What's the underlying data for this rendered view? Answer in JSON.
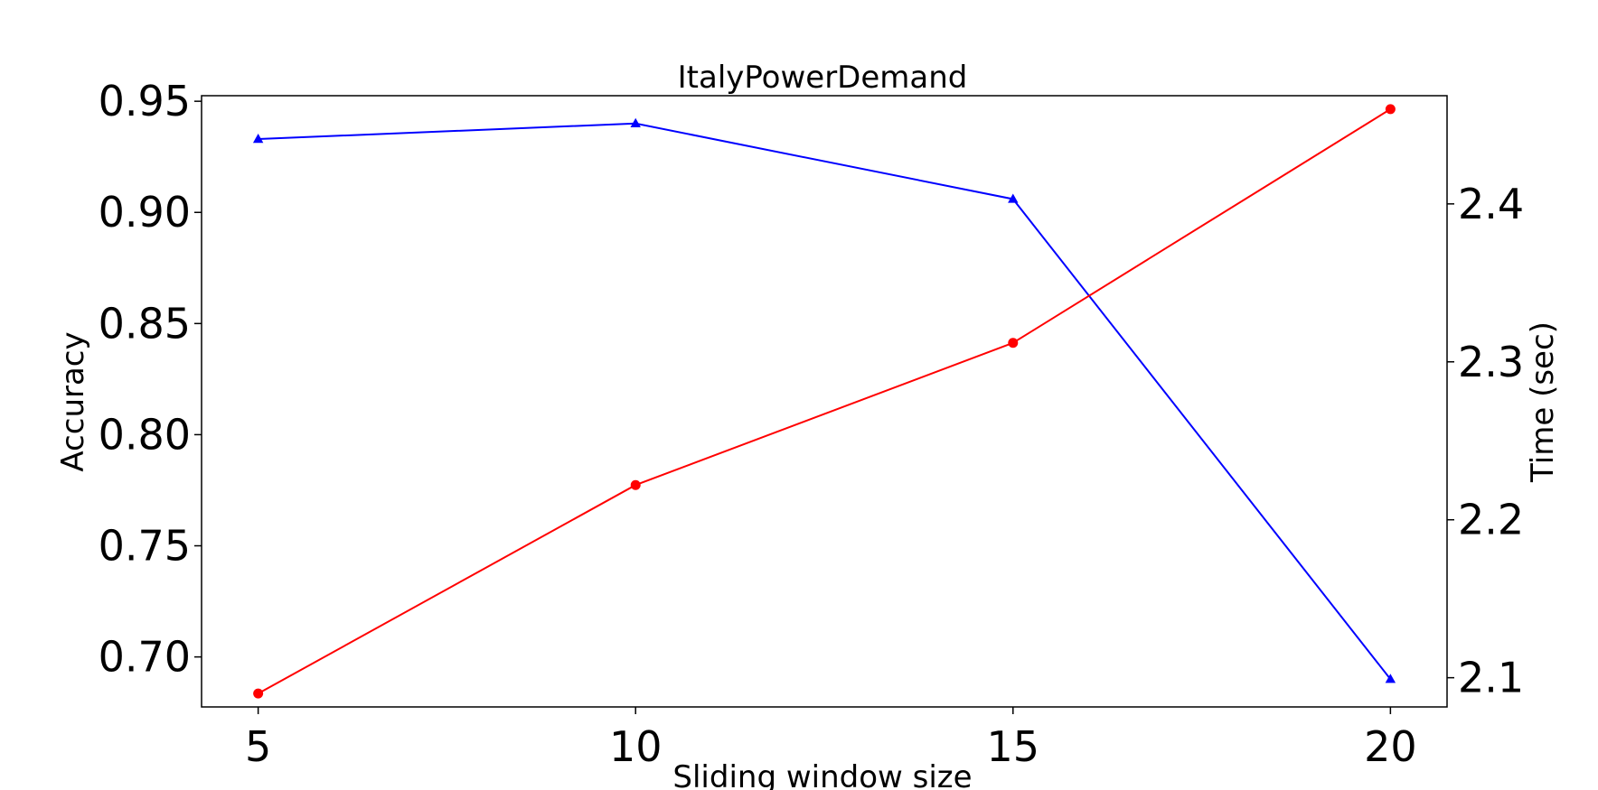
{
  "chart_data": {
    "type": "line",
    "title": "ItalyPowerDemand",
    "xlabel": "Sliding window size",
    "ylabel": "Accuracy",
    "y2label": "Time (sec)",
    "x": [
      5,
      10,
      15,
      20
    ],
    "xticks": [
      "5",
      "10",
      "15",
      "20"
    ],
    "xlim": [
      4.25,
      20.75
    ],
    "ylim": [
      0.6775,
      0.9525
    ],
    "yticks": [
      "0.70",
      "0.75",
      "0.80",
      "0.85",
      "0.90",
      "0.95"
    ],
    "y2lim": [
      2.0815,
      2.4685
    ],
    "y2ticks": [
      "2.1",
      "2.2",
      "2.3",
      "2.4"
    ],
    "grid": false,
    "series": [
      {
        "axis": "left",
        "color": "#0000ff",
        "marker": "triangle",
        "values": [
          0.933,
          0.94,
          0.906,
          0.69
        ]
      },
      {
        "axis": "right",
        "color": "#ff0000",
        "marker": "circle",
        "values": [
          2.09,
          2.222,
          2.312,
          2.46
        ]
      }
    ]
  }
}
